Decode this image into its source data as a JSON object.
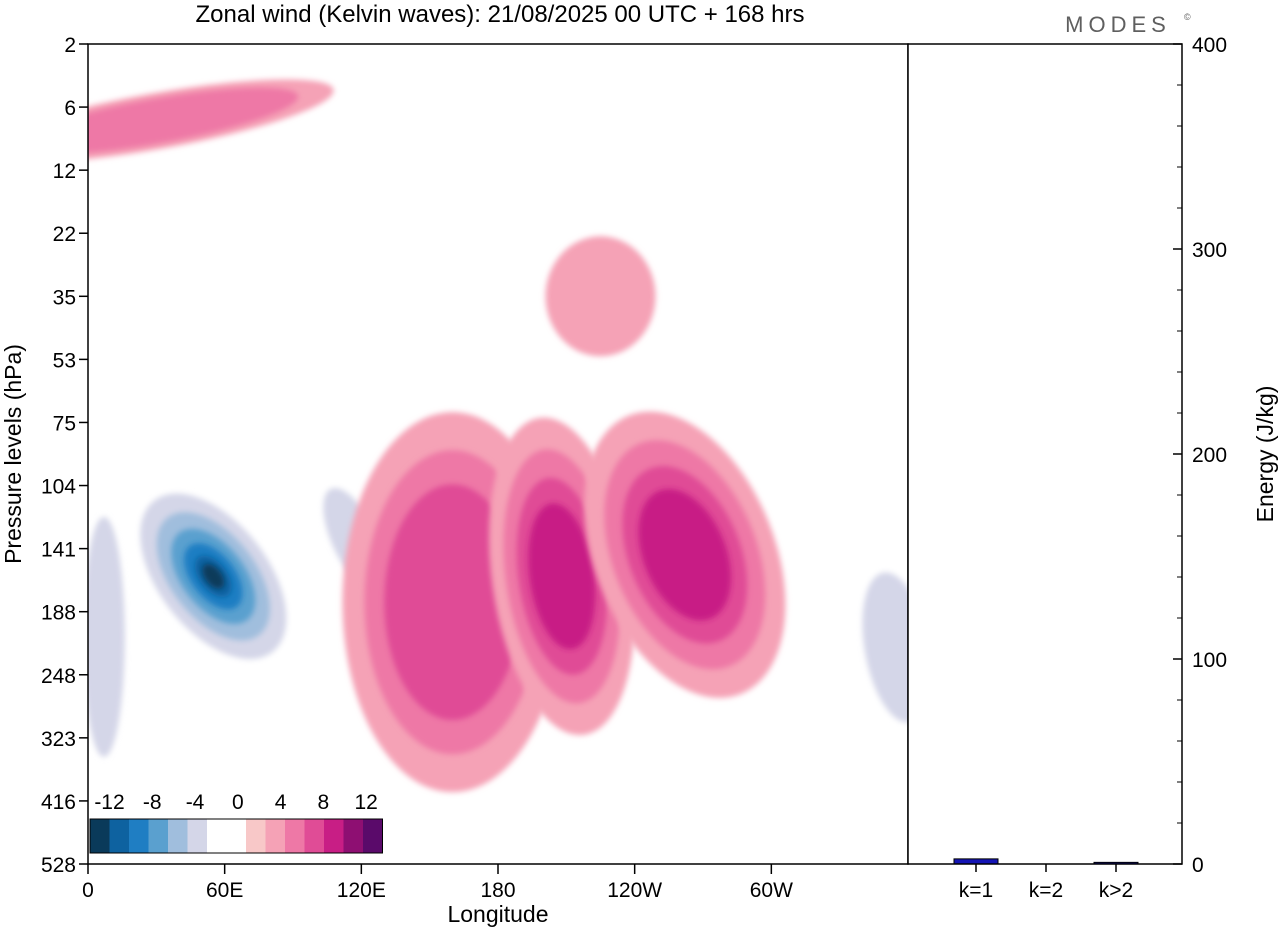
{
  "chart_data": [
    {
      "type": "heatmap",
      "title": "Zonal wind (Kelvin waves):  21/08/2025  00 UTC  + 168 hrs",
      "xlabel": "Longitude",
      "ylabel": "Pressure levels (hPa)",
      "x_ticks": [
        "0",
        "60E",
        "120E",
        "180",
        "120W",
        "60W"
      ],
      "x_range": [
        0,
        360
      ],
      "y_ticks": [
        "2",
        "6",
        "12",
        "22",
        "35",
        "53",
        "75",
        "104",
        "141",
        "188",
        "248",
        "323",
        "416",
        "528"
      ],
      "y_range": [
        2,
        528
      ],
      "colorbar": {
        "labels": [
          "-12",
          "-8",
          "-4",
          "0",
          "4",
          "8",
          "12"
        ],
        "levels": [
          -16,
          -14,
          -12,
          -10,
          -8,
          -6,
          -4,
          -2,
          0,
          2,
          4,
          6,
          8,
          10,
          12,
          14,
          16
        ],
        "colors": [
          "#0a3a5a",
          "#0e62a0",
          "#1f7ec3",
          "#5aa0cf",
          "#a0bedd",
          "#d4d6e8",
          "#ffffff",
          "#ffffff",
          "#f8c8c8",
          "#f5a2b6",
          "#ee78a6",
          "#e04c96",
          "#c81e85",
          "#8e0f72",
          "#5a0a6a"
        ]
      },
      "features": [
        {
          "sign": "negative",
          "peak": -16,
          "lon": 55,
          "pressure": 160
        },
        {
          "sign": "negative",
          "peak": -6,
          "lon": 117,
          "pressure": 135
        },
        {
          "sign": "negative",
          "peak": -6,
          "lon": 355,
          "pressure": 220
        },
        {
          "sign": "negative",
          "peak": -6,
          "lon": 7,
          "pressure": 210
        },
        {
          "sign": "negative",
          "peak": -2,
          "lon": 75,
          "pressure": 6
        },
        {
          "sign": "positive",
          "peak": 8,
          "lon": 160,
          "pressure": 180
        },
        {
          "sign": "positive",
          "peak": 10,
          "lon": 208,
          "pressure": 160
        },
        {
          "sign": "positive",
          "peak": 10,
          "lon": 262,
          "pressure": 145
        },
        {
          "sign": "positive",
          "peak": 6,
          "lon": 30,
          "pressure": 7
        },
        {
          "sign": "positive",
          "peak": 4,
          "lon": 225,
          "pressure": 35
        }
      ]
    },
    {
      "type": "bar",
      "categories": [
        "k=1",
        "k=2",
        "k>2"
      ],
      "values": [
        2.5,
        0,
        0.8
      ],
      "ylabel": "Energy (J/kg)",
      "ylim": [
        0,
        400
      ],
      "y_ticks": [
        "0",
        "100",
        "200",
        "300",
        "400"
      ],
      "bar_color": "#1414b4"
    }
  ],
  "logo": {
    "text": "MODES",
    "mark": "©"
  }
}
